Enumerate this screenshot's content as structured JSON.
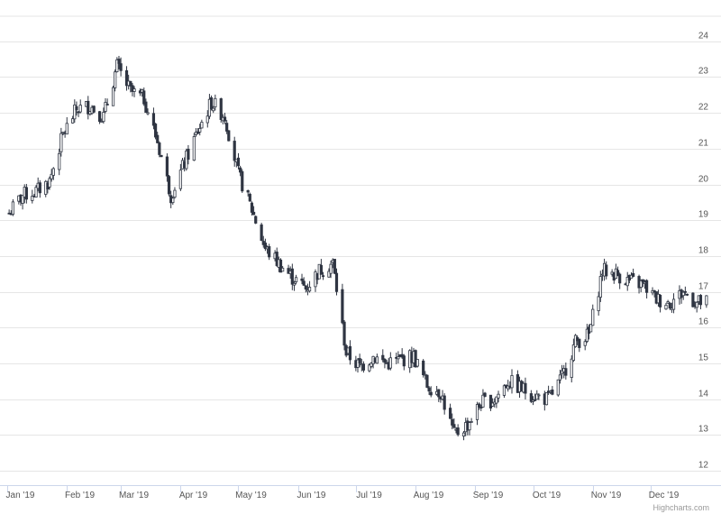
{
  "chart_data": {
    "type": "candlestick",
    "title": "",
    "xlabel": "",
    "ylabel": "",
    "x_tick_labels": [
      "Jan '19",
      "Feb '19",
      "Mar '19",
      "Apr '19",
      "May '19",
      "Jun '19",
      "Jul '19",
      "Aug '19",
      "Sep '19",
      "Oct '19",
      "Nov '19",
      "Dec '19"
    ],
    "y_tick_labels": [
      "12",
      "13",
      "14",
      "15",
      "16",
      "17",
      "18",
      "19",
      "20",
      "21",
      "22",
      "23",
      "24"
    ],
    "ylim": [
      11.6,
      24.7
    ],
    "yaxis_side": "right",
    "grid": true,
    "legend": "none",
    "colors": {
      "up": "#ffffff",
      "down": "#2f3542",
      "line": "#2f3542",
      "grid": "#e6e6e6",
      "axis": "#ccd6eb"
    },
    "weekly_close": [
      [
        "2019-01-02",
        19.2
      ],
      [
        "2019-01-09",
        19.7
      ],
      [
        "2019-01-16",
        19.8
      ],
      [
        "2019-01-23",
        20.1
      ],
      [
        "2019-01-30",
        21.4
      ],
      [
        "2019-02-06",
        22.1
      ],
      [
        "2019-02-13",
        22.2
      ],
      [
        "2019-02-20",
        21.9
      ],
      [
        "2019-02-27",
        23.3
      ],
      [
        "2019-03-06",
        22.6
      ],
      [
        "2019-03-13",
        22.4
      ],
      [
        "2019-03-20",
        21.2
      ],
      [
        "2019-03-27",
        19.7
      ],
      [
        "2019-04-03",
        20.6
      ],
      [
        "2019-04-10",
        21.5
      ],
      [
        "2019-04-17",
        22.3
      ],
      [
        "2019-04-24",
        21.9
      ],
      [
        "2019-05-01",
        20.3
      ],
      [
        "2019-05-08",
        19.3
      ],
      [
        "2019-05-15",
        18.2
      ],
      [
        "2019-05-22",
        17.8
      ],
      [
        "2019-05-29",
        17.4
      ],
      [
        "2019-06-05",
        17.1
      ],
      [
        "2019-06-12",
        17.6
      ],
      [
        "2019-06-19",
        17.8
      ],
      [
        "2019-06-26",
        15.3
      ],
      [
        "2019-07-03",
        14.9
      ],
      [
        "2019-07-10",
        15.2
      ],
      [
        "2019-07-17",
        15.0
      ],
      [
        "2019-07-24",
        15.1
      ],
      [
        "2019-07-31",
        15.2
      ],
      [
        "2019-08-07",
        14.4
      ],
      [
        "2019-08-14",
        14.2
      ],
      [
        "2019-08-21",
        13.0
      ],
      [
        "2019-08-28",
        13.3
      ],
      [
        "2019-09-04",
        13.9
      ],
      [
        "2019-09-11",
        14.0
      ],
      [
        "2019-09-18",
        14.5
      ],
      [
        "2019-09-25",
        14.3
      ],
      [
        "2019-10-02",
        14.1
      ],
      [
        "2019-10-09",
        14.0
      ],
      [
        "2019-10-16",
        14.6
      ],
      [
        "2019-10-23",
        15.6
      ],
      [
        "2019-10-30",
        15.8
      ],
      [
        "2019-11-06",
        17.6
      ],
      [
        "2019-11-13",
        17.5
      ],
      [
        "2019-11-20",
        17.3
      ],
      [
        "2019-11-27",
        17.2
      ],
      [
        "2019-12-04",
        16.8
      ],
      [
        "2019-12-11",
        16.7
      ],
      [
        "2019-12-18",
        17.0
      ],
      [
        "2019-12-25",
        16.7
      ]
    ],
    "credits": "Highcharts.com"
  }
}
